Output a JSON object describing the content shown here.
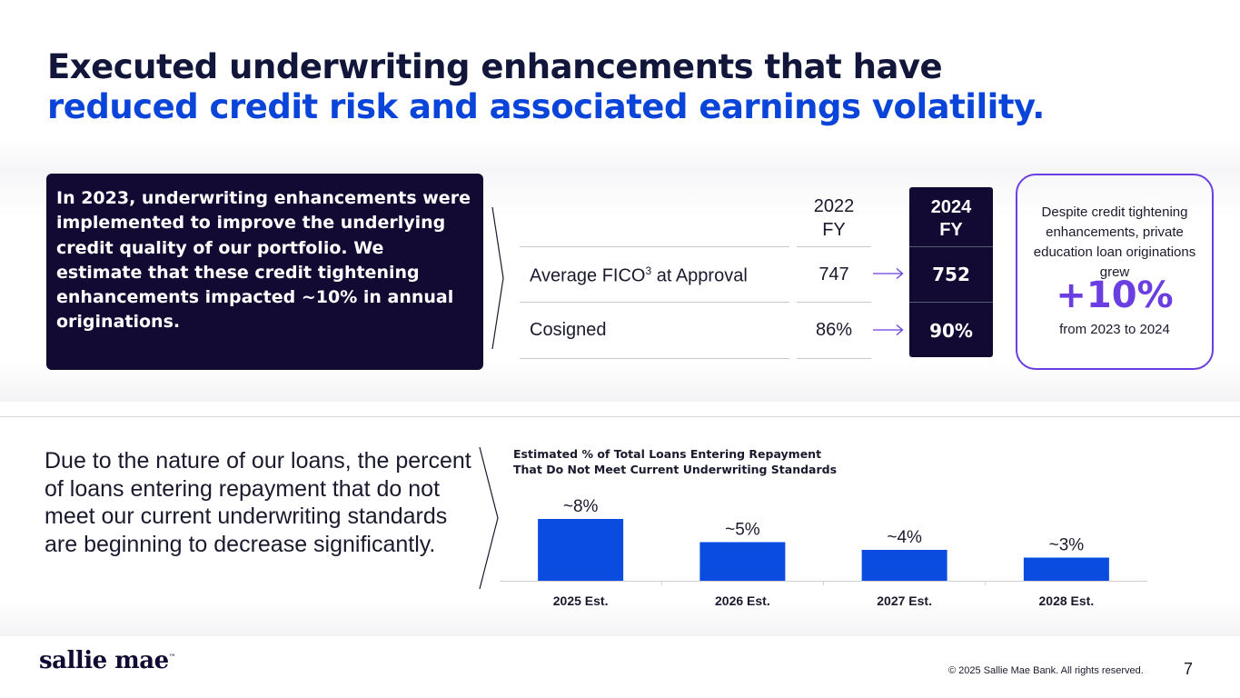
{
  "title": {
    "line1": "Executed underwriting enhancements that have",
    "line2": "reduced credit risk and associated earnings volatility."
  },
  "summary_box": {
    "text": "In 2023, underwriting enhancements were implemented to improve the underlying credit quality of our portfolio. We estimate that these credit tightening enhancements impacted ~10% in annual originations."
  },
  "table": {
    "col_2022": "2022\nFY",
    "col_2024": "2024\nFY",
    "rows": [
      {
        "label": "Average FICO",
        "sup": "3",
        "label_suffix": " at Approval",
        "v2022": "747",
        "v2024": "752"
      },
      {
        "label": "Cosigned",
        "sup": "",
        "label_suffix": "",
        "v2022": "86%",
        "v2024": "90%"
      }
    ]
  },
  "callout": {
    "text": "Despite credit tightening enhancements, private education loan originations grew",
    "big": "+10%",
    "sub": "from 2023 to 2024",
    "accent": "#6a3ee0"
  },
  "bottom_paragraph": "Due to the nature of our loans, the percent of loans entering repayment that do not meet our current underwriting standards are beginning to decrease significantly.",
  "chart_data": {
    "type": "bar",
    "title": "Estimated % of Total Loans Entering Repayment\nThat Do Not Meet Current Underwriting Standards",
    "categories": [
      "2025 Est.",
      "2026 Est.",
      "2027 Est.",
      "2028 Est."
    ],
    "values": [
      8,
      5,
      4,
      3
    ],
    "data_labels": [
      "~8%",
      "~5%",
      "~4%",
      "~3%"
    ],
    "xlabel": "",
    "ylabel": "",
    "ylim": [
      0,
      8
    ],
    "grid": false,
    "bar_color": "#0a4be0"
  },
  "footer": {
    "logo": "sallie mae",
    "logo_mark": "™",
    "copyright": "© 2025 Sallie Mae Bank. All rights reserved.",
    "page_number": "7"
  },
  "colors": {
    "navy": "#130a33",
    "blue": "#0a44d8",
    "purple": "#6a3ee0"
  }
}
